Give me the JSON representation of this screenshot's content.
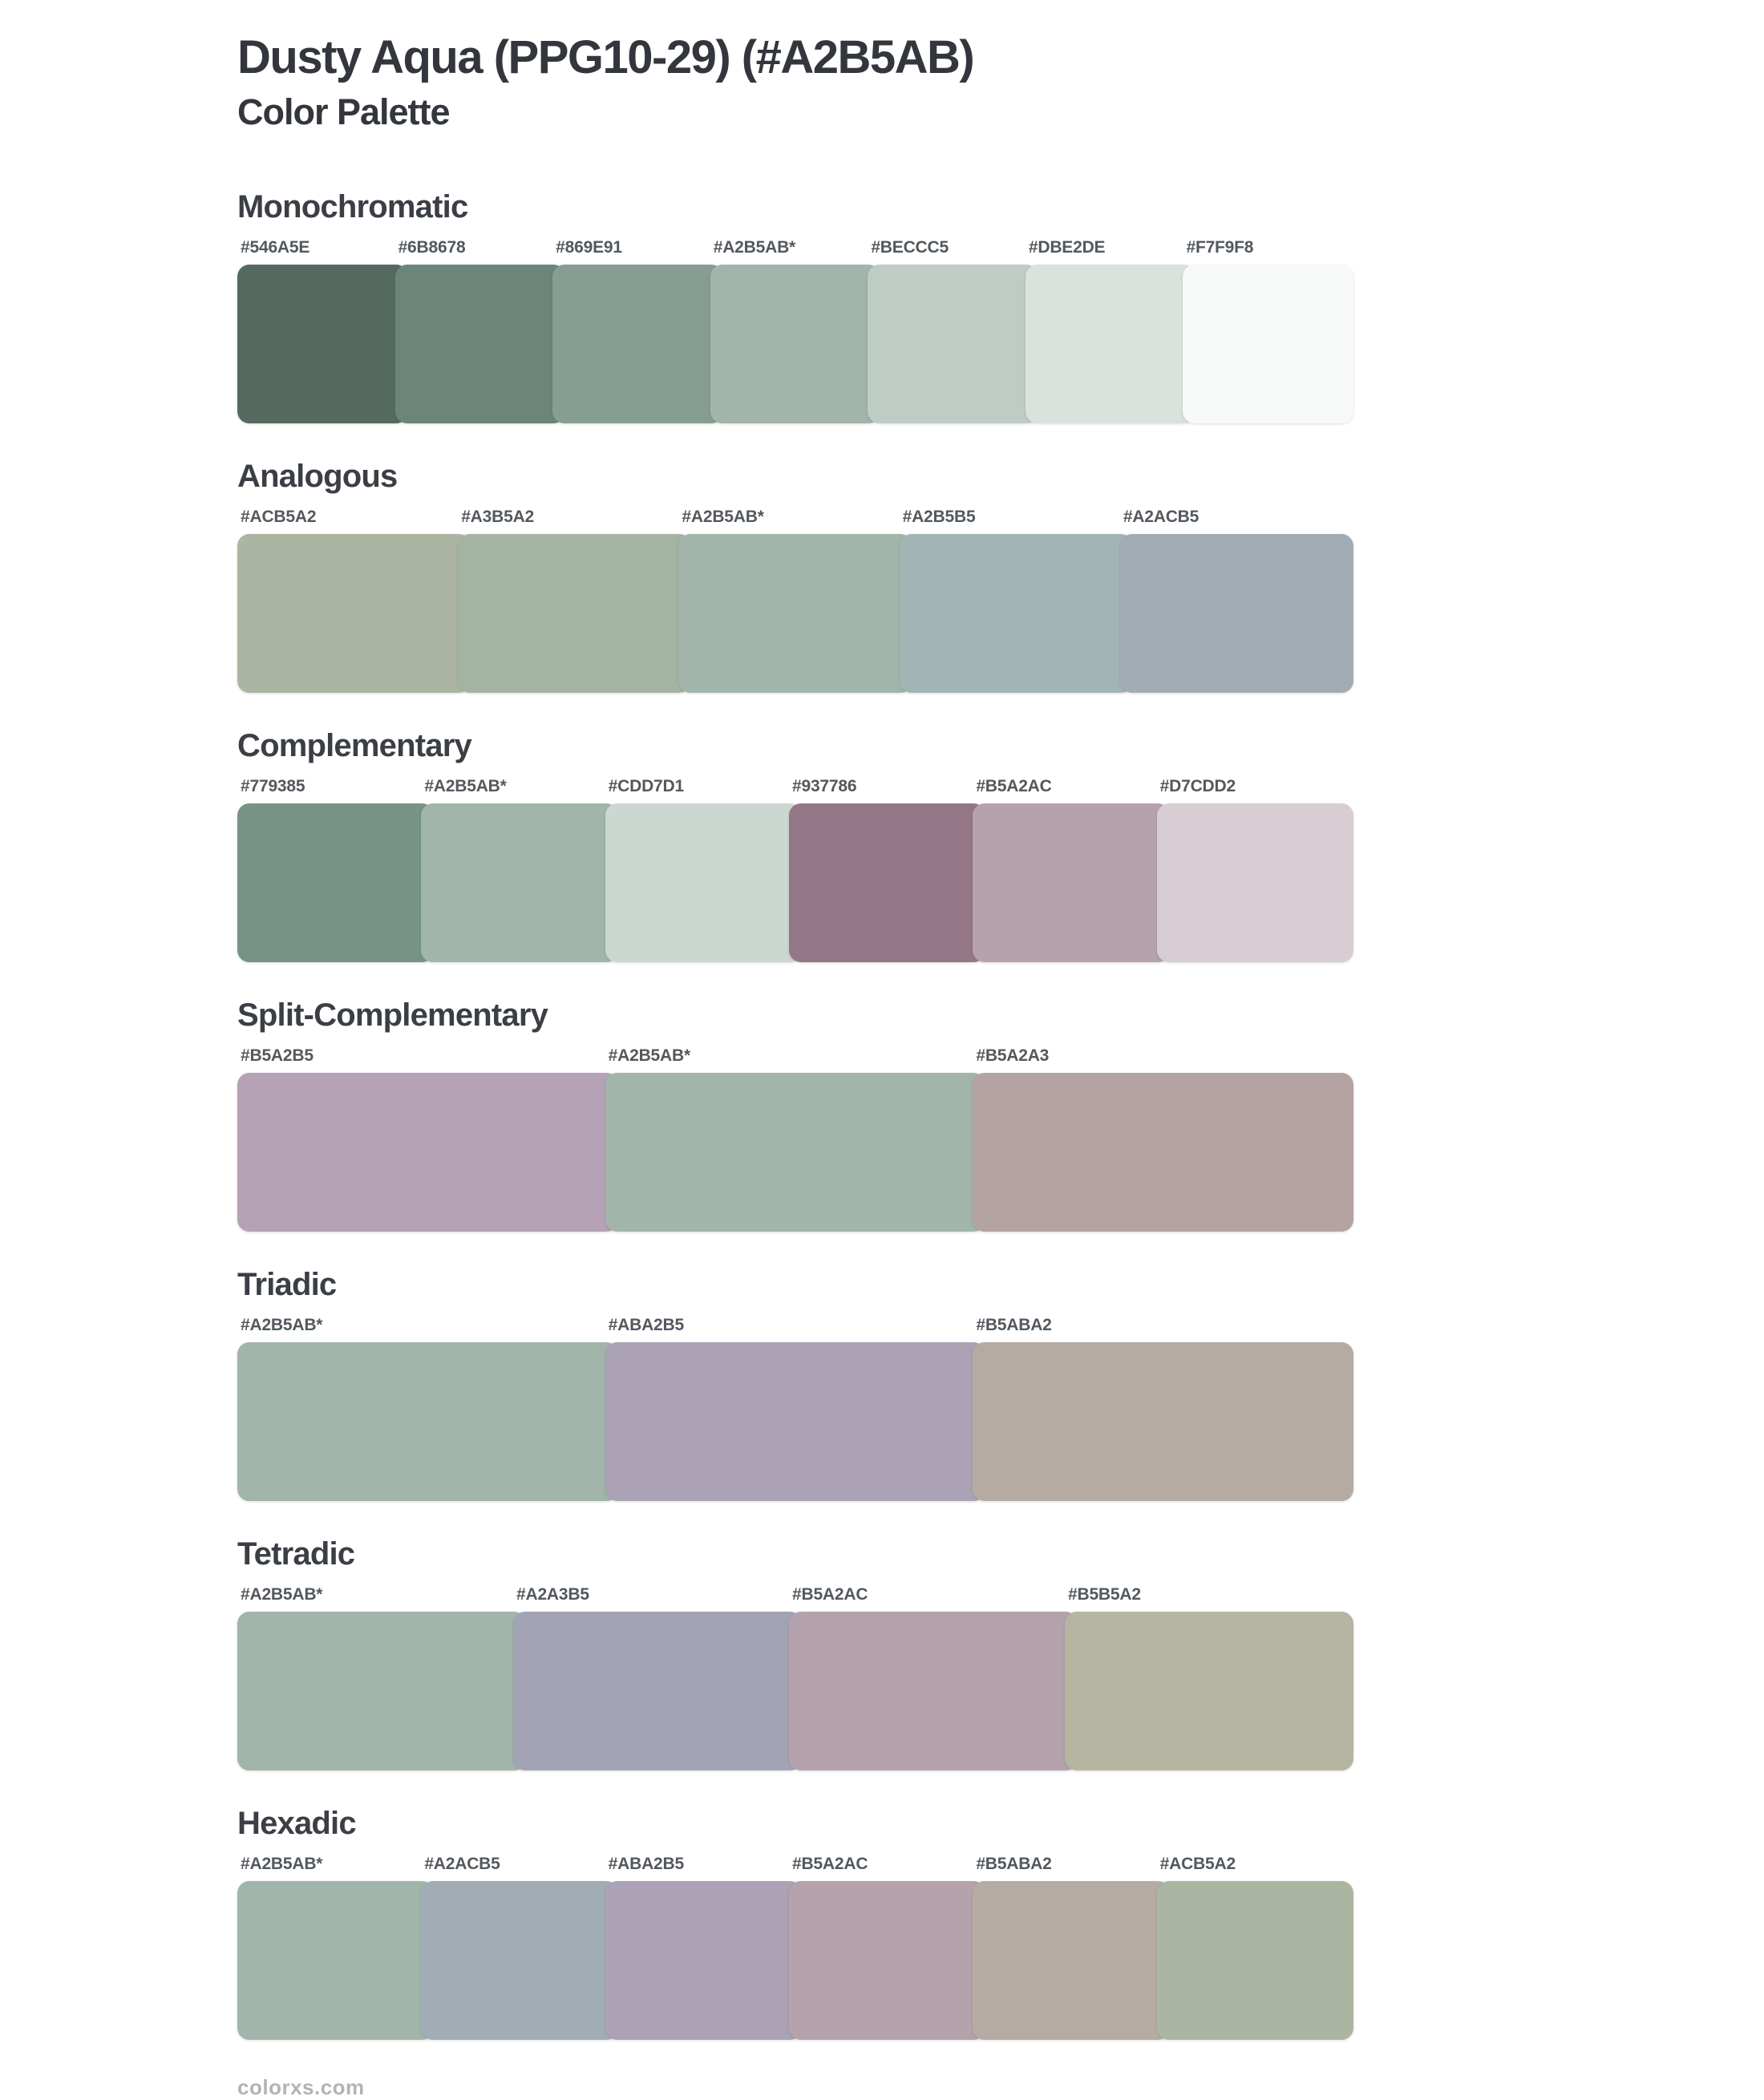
{
  "page": {
    "title": "Dusty Aqua (PPG10-29) (#A2B5AB)",
    "subtitle": "Color Palette",
    "footer": "colorxs.com",
    "base_color": "#A2B5AB",
    "heading_text_color": "#3B3F45",
    "label_text_color": "#53585D",
    "footer_text_color": "#B1B3B4"
  },
  "palettes": [
    {
      "name": "Monochromatic",
      "swatches": [
        {
          "label": "#546A5E",
          "color": "#546A5E"
        },
        {
          "label": "#6B8678",
          "color": "#6B8678"
        },
        {
          "label": "#869E91",
          "color": "#869E91"
        },
        {
          "label": "#A2B5AB*",
          "color": "#A2B5AB"
        },
        {
          "label": "#BECCC5",
          "color": "#BECCC5"
        },
        {
          "label": "#DBE2DE",
          "color": "#DBE2DE"
        },
        {
          "label": "#F7F9F8",
          "color": "#F7F9F8"
        }
      ]
    },
    {
      "name": "Analogous",
      "swatches": [
        {
          "label": "#ACB5A2",
          "color": "#ACB5A2"
        },
        {
          "label": "#A3B5A2",
          "color": "#A3B5A2"
        },
        {
          "label": "#A2B5AB*",
          "color": "#A2B5AB"
        },
        {
          "label": "#A2B5B5",
          "color": "#A2B5B5"
        },
        {
          "label": "#A2ACB5",
          "color": "#A2ACB5"
        }
      ]
    },
    {
      "name": "Complementary",
      "swatches": [
        {
          "label": "#779385",
          "color": "#779385"
        },
        {
          "label": "#A2B5AB*",
          "color": "#A2B5AB"
        },
        {
          "label": "#CDD7D1",
          "color": "#CDD7D1"
        },
        {
          "label": "#937786",
          "color": "#937786"
        },
        {
          "label": "#B5A2AC",
          "color": "#B5A2AC"
        },
        {
          "label": "#D7CDD2",
          "color": "#D7CDD2"
        }
      ]
    },
    {
      "name": "Split-Complementary",
      "swatches": [
        {
          "label": "#B5A2B5",
          "color": "#B5A2B5"
        },
        {
          "label": "#A2B5AB*",
          "color": "#A2B5AB"
        },
        {
          "label": "#B5A2A3",
          "color": "#B5A2A3"
        }
      ]
    },
    {
      "name": "Triadic",
      "swatches": [
        {
          "label": "#A2B5AB*",
          "color": "#A2B5AB"
        },
        {
          "label": "#ABA2B5",
          "color": "#ABA2B5"
        },
        {
          "label": "#B5ABA2",
          "color": "#B5ABA2"
        }
      ]
    },
    {
      "name": "Tetradic",
      "swatches": [
        {
          "label": "#A2B5AB*",
          "color": "#A2B5AB"
        },
        {
          "label": "#A2A3B5",
          "color": "#A2A3B5"
        },
        {
          "label": "#B5A2AC",
          "color": "#B5A2AC"
        },
        {
          "label": "#B5B5A2",
          "color": "#B5B5A2"
        }
      ]
    },
    {
      "name": "Hexadic",
      "swatches": [
        {
          "label": "#A2B5AB*",
          "color": "#A2B5AB"
        },
        {
          "label": "#A2ACB5",
          "color": "#A2ACB5"
        },
        {
          "label": "#ABA2B5",
          "color": "#ABA2B5"
        },
        {
          "label": "#B5A2AC",
          "color": "#B5A2AC"
        },
        {
          "label": "#B5ABA2",
          "color": "#B5ABA2"
        },
        {
          "label": "#ACB5A2",
          "color": "#ACB5A2"
        }
      ]
    }
  ]
}
